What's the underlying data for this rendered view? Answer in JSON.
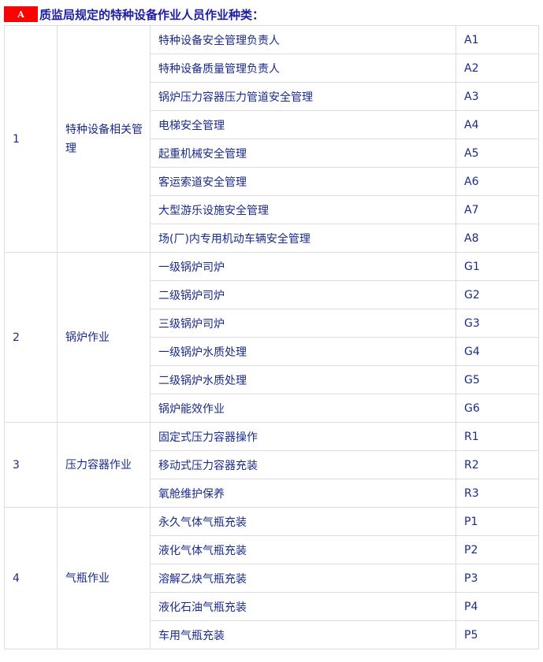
{
  "title": {
    "badge": "A",
    "text": "质监局规定的特种设备作业人员作业种类："
  },
  "groups": [
    {
      "no": "1",
      "name": "特种设备相关管理",
      "items": [
        [
          "特种设备安全管理负责人",
          "A1"
        ],
        [
          "特种设备质量管理负责人",
          "A2"
        ],
        [
          "锅炉压力容器压力管道安全管理",
          "A3"
        ],
        [
          "电梯安全管理",
          "A4"
        ],
        [
          "起重机械安全管理",
          "A5"
        ],
        [
          "客运索道安全管理",
          "A6"
        ],
        [
          "大型游乐设施安全管理",
          "A7"
        ],
        [
          "场(厂)内专用机动车辆安全管理",
          "A8"
        ]
      ]
    },
    {
      "no": "2",
      "name": "锅炉作业",
      "items": [
        [
          "一级锅炉司炉",
          "G1"
        ],
        [
          "二级锅炉司炉",
          "G2"
        ],
        [
          "三级锅炉司炉",
          "G3"
        ],
        [
          "一级锅炉水质处理",
          "G4"
        ],
        [
          "二级锅炉水质处理",
          "G5"
        ],
        [
          "锅炉能效作业",
          "G6"
        ]
      ]
    },
    {
      "no": "3",
      "name": "压力容器作业",
      "items": [
        [
          "固定式压力容器操作",
          "R1"
        ],
        [
          "移动式压力容器充装",
          "R2"
        ],
        [
          "氧舱维护保养",
          "R3"
        ]
      ]
    },
    {
      "no": "4",
      "name": "气瓶作业",
      "items": [
        [
          "永久气体气瓶充装",
          "P1"
        ],
        [
          "液化气体气瓶充装",
          "P2"
        ],
        [
          "溶解乙炔气瓶充装",
          "P3"
        ],
        [
          "液化石油气瓶充装",
          "P4"
        ],
        [
          "车用气瓶充装",
          "P5"
        ]
      ]
    }
  ]
}
